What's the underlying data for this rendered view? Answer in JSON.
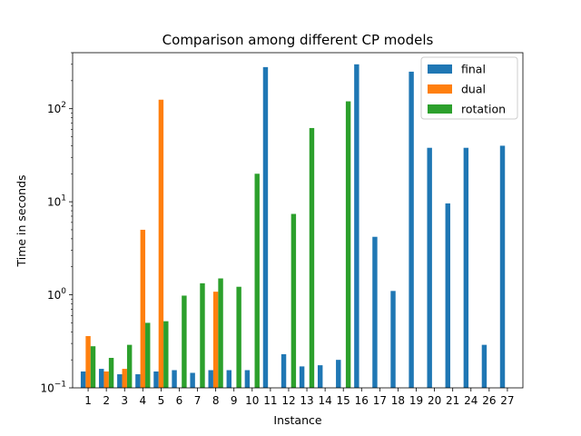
{
  "chart_data": {
    "type": "bar",
    "title": "Comparison among different CP models",
    "xlabel": "Instance",
    "ylabel": "Time in seconds",
    "yscale": "log",
    "ylim": [
      0.1,
      400
    ],
    "yticks": [
      {
        "value": 0.1,
        "base": "10",
        "exp": "−1"
      },
      {
        "value": 1,
        "base": "10",
        "exp": "0"
      },
      {
        "value": 10,
        "base": "10",
        "exp": "1"
      },
      {
        "value": 100,
        "base": "10",
        "exp": "2"
      }
    ],
    "categories": [
      "1",
      "2",
      "3",
      "4",
      "5",
      "6",
      "7",
      "8",
      "9",
      "10",
      "11",
      "12",
      "13",
      "14",
      "15",
      "16",
      "17",
      "18",
      "19",
      "20",
      "21",
      "24",
      "26",
      "27"
    ],
    "legend": {
      "position": "top-right"
    },
    "series": [
      {
        "name": "final",
        "color": "#1f77b4",
        "values": [
          0.15,
          0.16,
          0.14,
          0.14,
          0.15,
          0.155,
          0.145,
          0.155,
          0.155,
          0.155,
          280,
          0.23,
          0.17,
          0.175,
          0.2,
          300,
          4.2,
          1.1,
          250,
          38,
          9.6,
          38,
          0.29,
          40
        ]
      },
      {
        "name": "dual",
        "color": "#ff7f0e",
        "values": [
          0.36,
          0.15,
          0.16,
          5.0,
          125,
          null,
          null,
          1.08,
          null,
          null,
          null,
          null,
          null,
          null,
          null,
          null,
          null,
          null,
          null,
          null,
          null,
          null,
          null,
          null
        ]
      },
      {
        "name": "rotation",
        "color": "#2ca02c",
        "values": [
          0.28,
          0.21,
          0.29,
          0.5,
          0.52,
          0.98,
          1.33,
          1.5,
          1.22,
          20,
          null,
          7.4,
          62,
          null,
          120,
          null,
          null,
          null,
          null,
          null,
          null,
          null,
          null,
          null
        ]
      }
    ]
  }
}
